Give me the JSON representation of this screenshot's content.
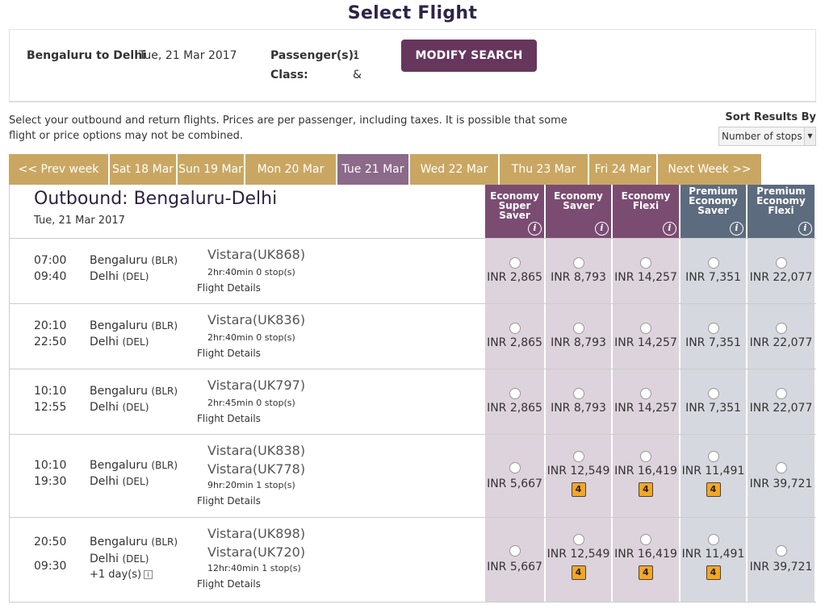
{
  "page": {
    "title": "Select Flight"
  },
  "search": {
    "route": "Bengaluru to Delhi",
    "date": "Tue, 21 Mar 2017",
    "passengers_label": "Passenger(s):",
    "passengers_value": "1",
    "class_label": "Class:",
    "class_value": "&",
    "modify_label": "MODIFY SEARCH"
  },
  "info": {
    "text": "Select your outbound and return flights. Prices are per passenger, including taxes. It is possible that some flight or price options may not be combined."
  },
  "sort": {
    "label": "Sort Results By",
    "selected": "Number of stops"
  },
  "week_tabs": [
    {
      "label": "<< Prev week"
    },
    {
      "label": "Sat 18 Mar"
    },
    {
      "label": "Sun 19 Mar"
    },
    {
      "label": "Mon 20 Mar"
    },
    {
      "label": "Tue 21 Mar"
    },
    {
      "label": "Wed 22 Mar"
    },
    {
      "label": "Thu 23 Mar"
    },
    {
      "label": "Fri 24 Mar"
    },
    {
      "label": "Next Week >>"
    }
  ],
  "active_tab_index": 4,
  "outbound": {
    "title": "Outbound: Bengaluru-Delhi",
    "date": "Tue, 21 Mar 2017"
  },
  "fare_classes": [
    {
      "label": "Economy Super Saver",
      "type": "economy"
    },
    {
      "label": "Economy Saver",
      "type": "economy"
    },
    {
      "label": "Economy Flexi",
      "type": "economy"
    },
    {
      "label": "Premium Economy Saver",
      "type": "premium"
    },
    {
      "label": "Premium Economy Flexi",
      "type": "premium"
    }
  ],
  "colors": {
    "economy": "#7b4c72",
    "premium": "#5c6b7e",
    "gold": "#c9a762",
    "active_tab": "#8b6a8a",
    "button": "#66365d"
  },
  "icons": {
    "info": "info-icon",
    "seat": "seat-count-icon",
    "day_info": "info-box-icon"
  },
  "flights": [
    {
      "depart": "07:00",
      "arrive": "09:40",
      "from_city": "Bengaluru",
      "from_code": "(BLR)",
      "to_city": "Delhi",
      "to_code": "(DEL)",
      "flight_numbers": [
        "Vistara(UK868)"
      ],
      "duration": "2hr:40min   0 stop(s)",
      "details": "Flight Details",
      "plus_day": "",
      "prices": [
        "INR 2,865",
        "INR 8,793",
        "INR 14,257",
        "INR 7,351",
        "INR 22,077"
      ],
      "seat_badge": [
        false,
        false,
        false,
        false,
        false
      ],
      "seat_badge_text": "4"
    },
    {
      "depart": "20:10",
      "arrive": "22:50",
      "from_city": "Bengaluru",
      "from_code": "(BLR)",
      "to_city": "Delhi",
      "to_code": "(DEL)",
      "flight_numbers": [
        "Vistara(UK836)"
      ],
      "duration": "2hr:40min   0 stop(s)",
      "details": "Flight Details",
      "plus_day": "",
      "prices": [
        "INR 2,865",
        "INR 8,793",
        "INR 14,257",
        "INR 7,351",
        "INR 22,077"
      ],
      "seat_badge": [
        false,
        false,
        false,
        false,
        false
      ],
      "seat_badge_text": "4"
    },
    {
      "depart": "10:10",
      "arrive": "12:55",
      "from_city": "Bengaluru",
      "from_code": "(BLR)",
      "to_city": "Delhi",
      "to_code": "(DEL)",
      "flight_numbers": [
        "Vistara(UK797)"
      ],
      "duration": "2hr:45min   0 stop(s)",
      "details": "Flight Details",
      "plus_day": "",
      "prices": [
        "INR 2,865",
        "INR 8,793",
        "INR 14,257",
        "INR 7,351",
        "INR 22,077"
      ],
      "seat_badge": [
        false,
        false,
        false,
        false,
        false
      ],
      "seat_badge_text": "4"
    },
    {
      "depart": "10:10",
      "arrive": "19:30",
      "from_city": "Bengaluru",
      "from_code": "(BLR)",
      "to_city": "Delhi",
      "to_code": "(DEL)",
      "flight_numbers": [
        "Vistara(UK838)",
        "Vistara(UK778)"
      ],
      "duration": "9hr:20min   1 stop(s)",
      "details": "Flight Details",
      "plus_day": "",
      "prices": [
        "INR 5,667",
        "INR 12,549",
        "INR 16,419",
        "INR 11,491",
        "INR 39,721"
      ],
      "seat_badge": [
        false,
        true,
        true,
        true,
        false
      ],
      "seat_badge_text": "4"
    },
    {
      "depart": "20:50",
      "arrive": "09:30",
      "from_city": "Bengaluru",
      "from_code": "(BLR)",
      "to_city": "Delhi",
      "to_code": "(DEL)",
      "flight_numbers": [
        "Vistara(UK898)",
        "Vistara(UK720)"
      ],
      "duration": "12hr:40min   1 stop(s)",
      "details": "Flight Details",
      "plus_day": "+1 day(s)",
      "prices": [
        "INR 5,667",
        "INR 12,549",
        "INR 16,419",
        "INR 11,491",
        "INR 39,721"
      ],
      "seat_badge": [
        false,
        true,
        true,
        true,
        false
      ],
      "seat_badge_text": "4"
    }
  ]
}
